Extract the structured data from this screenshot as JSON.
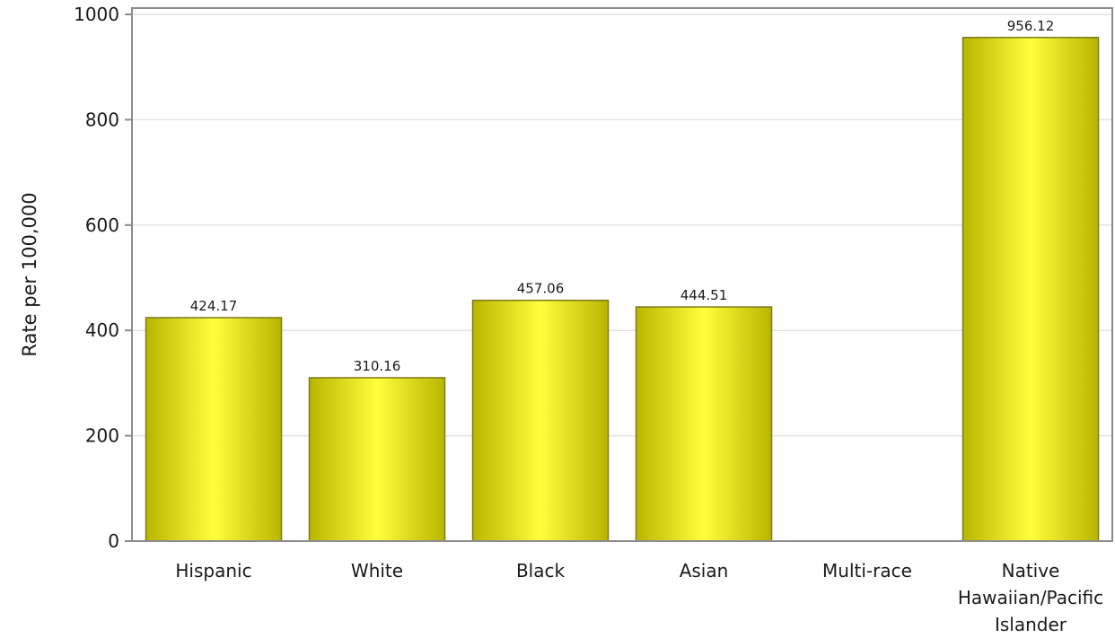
{
  "chart_data": {
    "type": "bar",
    "title": "",
    "xlabel": "",
    "ylabel": "Rate per 100,000",
    "ylim": [
      0,
      1000
    ],
    "yticks": [
      0,
      200,
      400,
      600,
      800,
      1000
    ],
    "grid": true,
    "categories": [
      "Hispanic",
      "White",
      "Black",
      "Asian",
      "Multi-race",
      "Native Hawaiian/Pacific Islander"
    ],
    "category_lines": [
      [
        "Hispanic"
      ],
      [
        "White"
      ],
      [
        "Black"
      ],
      [
        "Asian"
      ],
      [
        "Multi-race"
      ],
      [
        "Native",
        "Hawaiian/Pacific",
        "Islander"
      ]
    ],
    "values": [
      424.17,
      310.16,
      457.06,
      444.51,
      null,
      956.12
    ],
    "value_labels": [
      "424.17",
      "310.16",
      "457.06",
      "444.51",
      "",
      "956.12"
    ],
    "colors": {
      "bar_center": "#ffff3c",
      "bar_edge": "#b7b400",
      "bar_outline": "#7d7a1e",
      "grid": "#e3e3e3",
      "frame": "#8c8c8c"
    }
  }
}
